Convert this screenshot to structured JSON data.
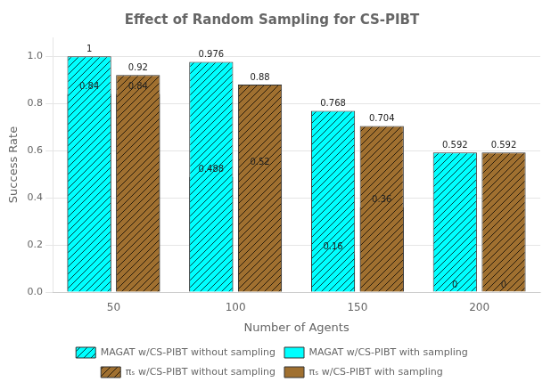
{
  "chart_data": {
    "type": "bar",
    "title": "Effect of Random Sampling for CS-PIBT",
    "xlabel": "Number of Agents",
    "ylabel": "Success Rate",
    "categories": [
      "50",
      "100",
      "150",
      "200"
    ],
    "series": [
      {
        "name": "MAGAT w/CS-PIBT without sampling",
        "color": "#00FFFF",
        "line_style": "hatch",
        "values": [
          1.0,
          0.976,
          0.768,
          0.592
        ]
      },
      {
        "name": "MAGAT w/CS-PIBT with sampling",
        "color": "#00FFFF",
        "line_style": "solid",
        "values": [
          0.84,
          0.488,
          0.16,
          0.0
        ]
      },
      {
        "name": "πₛ w/CS-PIBT without sampling",
        "color": "#A07030",
        "line_style": "hatch",
        "values": [
          0.92,
          0.88,
          0.704,
          0.592
        ]
      },
      {
        "name": "πₛ w/CS-PIBT with sampling",
        "color": "#A07030",
        "line_style": "solid",
        "values": [
          0.84,
          0.52,
          0.36,
          0.0
        ]
      }
    ],
    "ylim": [
      0.0,
      1.08
    ],
    "yticks": [
      {
        "value": 0.0,
        "label": "0.0"
      },
      0.2,
      0.4,
      0.6,
      0.8,
      {
        "value": 1.0,
        "label": "1.0"
      }
    ],
    "grid": true,
    "legend": "bottom",
    "data_labels": true
  }
}
